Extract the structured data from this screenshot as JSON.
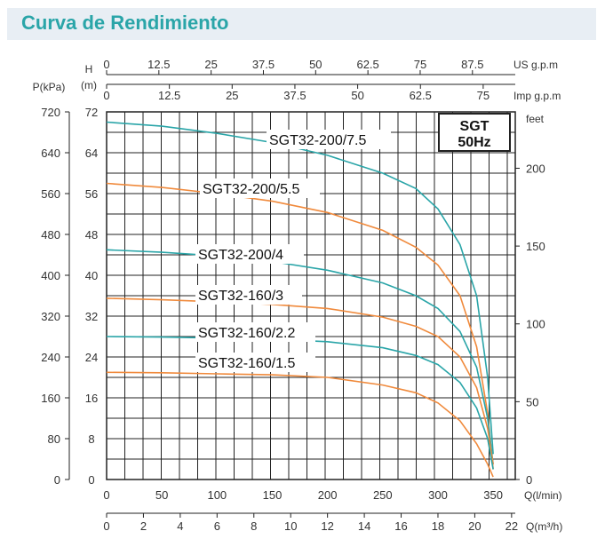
{
  "title": "Curva de Rendimiento",
  "chart_data": {
    "type": "line",
    "badge": {
      "line1": "SGT",
      "line2": "50Hz"
    },
    "axes": {
      "flow_lmin": {
        "label": "Q(l/min)",
        "ticks": [
          "0",
          "50",
          "100",
          "150",
          "200",
          "250",
          "300",
          "350"
        ],
        "range": [
          0,
          350
        ]
      },
      "flow_m3h": {
        "label": "Q(m³/h)",
        "ticks": [
          "0",
          "2",
          "4",
          "6",
          "8",
          "10",
          "12",
          "14",
          "16",
          "18",
          "20",
          "22"
        ]
      },
      "usgpm": {
        "label": "US g.p.m",
        "ticks": [
          "0",
          "12.5",
          "25",
          "37.5",
          "50",
          "62.5",
          "75",
          "87.5"
        ]
      },
      "impgpm": {
        "label": "Imp g.p.m",
        "ticks": [
          "0",
          "12.5",
          "25",
          "37.5",
          "50",
          "62.5",
          "75"
        ]
      },
      "head_m": {
        "label_top": "H",
        "label_unit": "(m)",
        "ticks": [
          "0",
          "8",
          "16",
          "24",
          "32",
          "40",
          "48",
          "56",
          "64",
          "72"
        ],
        "range": [
          0,
          72
        ]
      },
      "pressure_kpa": {
        "label": "P(kPa)",
        "ticks": [
          "0",
          "80",
          "160",
          "240",
          "320",
          "400",
          "480",
          "560",
          "640",
          "720"
        ]
      },
      "head_feet": {
        "label": "feet",
        "ticks": [
          "0",
          "50",
          "100",
          "150",
          "200"
        ]
      }
    },
    "series": [
      {
        "name": "SGT32-200/7.5",
        "color": "#2aa5a8",
        "points": [
          [
            0,
            70
          ],
          [
            50,
            69.2
          ],
          [
            100,
            67.8
          ],
          [
            150,
            66
          ],
          [
            200,
            63.5
          ],
          [
            250,
            60
          ],
          [
            280,
            57
          ],
          [
            300,
            53
          ],
          [
            320,
            46
          ],
          [
            335,
            36
          ],
          [
            345,
            20
          ],
          [
            350,
            5
          ]
        ]
      },
      {
        "name": "SGT32-200/5.5",
        "color": "#f08a3c",
        "points": [
          [
            0,
            58
          ],
          [
            50,
            57.2
          ],
          [
            100,
            56
          ],
          [
            150,
            54.5
          ],
          [
            200,
            52.3
          ],
          [
            250,
            48.8
          ],
          [
            280,
            45.5
          ],
          [
            300,
            42
          ],
          [
            320,
            36
          ],
          [
            335,
            26
          ],
          [
            345,
            13
          ],
          [
            350,
            2
          ]
        ]
      },
      {
        "name": "SGT32-200/4",
        "color": "#2aa5a8",
        "points": [
          [
            0,
            45
          ],
          [
            50,
            44.5
          ],
          [
            100,
            43.8
          ],
          [
            150,
            42.7
          ],
          [
            200,
            41
          ],
          [
            250,
            38.5
          ],
          [
            280,
            36
          ],
          [
            300,
            33.5
          ],
          [
            320,
            29
          ],
          [
            335,
            22
          ],
          [
            345,
            12
          ],
          [
            350,
            3
          ]
        ]
      },
      {
        "name": "SGT32-160/3",
        "color": "#f08a3c",
        "points": [
          [
            0,
            35.5
          ],
          [
            50,
            35.2
          ],
          [
            100,
            34.8
          ],
          [
            150,
            34.3
          ],
          [
            200,
            33.5
          ],
          [
            250,
            31.8
          ],
          [
            280,
            30
          ],
          [
            300,
            28
          ],
          [
            320,
            24
          ],
          [
            335,
            18
          ],
          [
            345,
            10
          ],
          [
            350,
            3
          ]
        ]
      },
      {
        "name": "SGT32-160/2.2",
        "color": "#2aa5a8",
        "points": [
          [
            0,
            28
          ],
          [
            50,
            27.9
          ],
          [
            100,
            27.7
          ],
          [
            150,
            27.5
          ],
          [
            200,
            27
          ],
          [
            250,
            25.8
          ],
          [
            280,
            24.3
          ],
          [
            300,
            22.5
          ],
          [
            320,
            19
          ],
          [
            335,
            14
          ],
          [
            345,
            8
          ],
          [
            350,
            2
          ]
        ]
      },
      {
        "name": "SGT32-160/1.5",
        "color": "#f08a3c",
        "points": [
          [
            0,
            21
          ],
          [
            50,
            20.9
          ],
          [
            100,
            20.7
          ],
          [
            150,
            20.5
          ],
          [
            200,
            20
          ],
          [
            250,
            18.5
          ],
          [
            280,
            17
          ],
          [
            300,
            15
          ],
          [
            320,
            11.5
          ],
          [
            335,
            7
          ],
          [
            345,
            3
          ],
          [
            350,
            0.5
          ]
        ]
      }
    ]
  }
}
